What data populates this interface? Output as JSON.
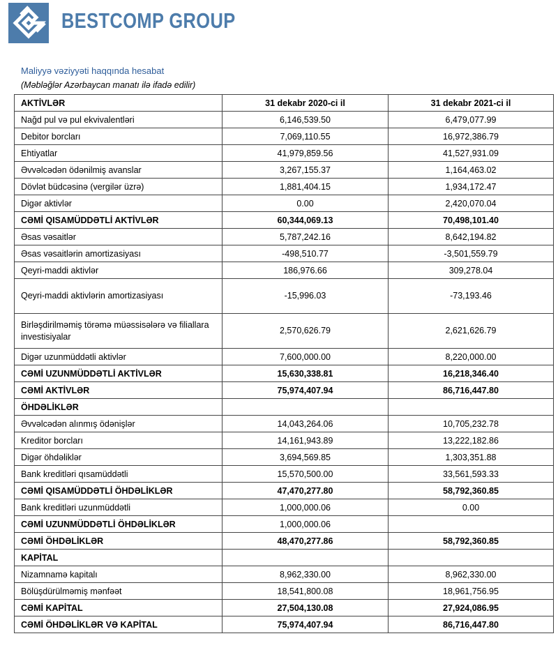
{
  "header": {
    "brand": "BESTCOMP GROUP",
    "title": "Maliyyə vəziyyəti haqqında hesabat",
    "note": "(Məbləğlər Azərbaycan manatı ilə ifadə edilir)"
  },
  "table": {
    "columns": [
      "AKTİVLƏR",
      "31 dekabr 2020-ci il",
      "31 dekabr 2021-ci il"
    ],
    "rows": [
      [
        "Nağd pul və pul ekvivalentləri",
        "6,146,539.50",
        "6,479,077.99"
      ],
      [
        "Debitor borcları",
        "7,069,110.55",
        "16,972,386.79"
      ],
      [
        "Ehtiyatlar",
        "41,979,859.56",
        "41,527,931.09"
      ],
      [
        "Əvvəlcədən ödənilmiş avanslar",
        "3,267,155.37",
        "1,164,463.02"
      ],
      [
        "Dövlət büdcəsinə (vergilər üzrə)",
        "1,881,404.15",
        "1,934,172.47"
      ],
      [
        "Digər aktivlər",
        "0.00",
        "2,420,070.04"
      ],
      [
        "CƏMİ QISAMÜDDƏTLİ AKTİVLƏR",
        "60,344,069.13",
        "70,498,101.40"
      ],
      [
        "Əsas vəsaitlər",
        "5,787,242.16",
        "8,642,194.82"
      ],
      [
        "Əsas vəsaitlərin amortizasiyası",
        "-498,510.77",
        "-3,501,559.79"
      ],
      [
        "Qeyri-maddi aktivlər",
        "186,976.66",
        "309,278.04"
      ],
      [
        "Qeyri-maddi aktivlərin amortizasiyası",
        "-15,996.03",
        "-73,193.46"
      ],
      [
        "Birləşdirilməmiş törəmə müəssisələrə və filiallara investisiyalar",
        "2,570,626.79",
        "2,621,626.79"
      ],
      [
        "Digər uzunmüddətli aktivlər",
        "7,600,000.00",
        "8,220,000.00"
      ],
      [
        "CƏMİ UZUNMÜDDƏTLİ AKTİVLƏR",
        "15,630,338.81",
        "16,218,346.40"
      ],
      [
        "CƏMİ AKTİVLƏR",
        "75,974,407.94",
        "86,716,447.80"
      ],
      [
        "ÖHDƏLİKLƏR",
        null,
        null
      ],
      [
        "Əvvəlcədən alınmış ödənişlər",
        "14,043,264.06",
        "10,705,232.78"
      ],
      [
        "Kreditor borcları",
        "14,161,943.89",
        "13,222,182.86"
      ],
      [
        "Digər öhdəliklər",
        "3,694,569.85",
        "1,303,351.88"
      ],
      [
        "Bank kreditləri qısamüddətli",
        "15,570,500.00",
        "33,561,593.33"
      ],
      [
        "CƏMİ QISAMÜDDƏTLİ  ÖHDƏLİKLƏR",
        "47,470,277.80",
        "58,792,360.85"
      ],
      [
        "Bank kreditləri  uzunmüddətli",
        "1,000,000.06",
        "0.00"
      ],
      [
        "CƏMİ UZUNMÜDDƏTLİ ÖHDƏLİKLƏR",
        "1,000,000.06",
        null
      ],
      [
        "CƏMİ  ÖHDƏLİKLƏR",
        "48,470,277.86",
        "58,792,360.85"
      ],
      [
        "KAPİTAL",
        null,
        null
      ],
      [
        "Nizamnamə kapitalı",
        "8,962,330.00",
        "8,962,330.00"
      ],
      [
        "Bölüşdürülməmiş mənfəət",
        "18,541,800.08",
        "18,961,756.95"
      ],
      [
        "CƏMİ KAPİTAL",
        "27,504,130.08",
        "27,924,086.95"
      ],
      [
        "CƏMİ ÖHDƏLİKLƏR VƏ KAPİTAL",
        "75,974,407.94",
        "86,716,447.80"
      ]
    ]
  }
}
